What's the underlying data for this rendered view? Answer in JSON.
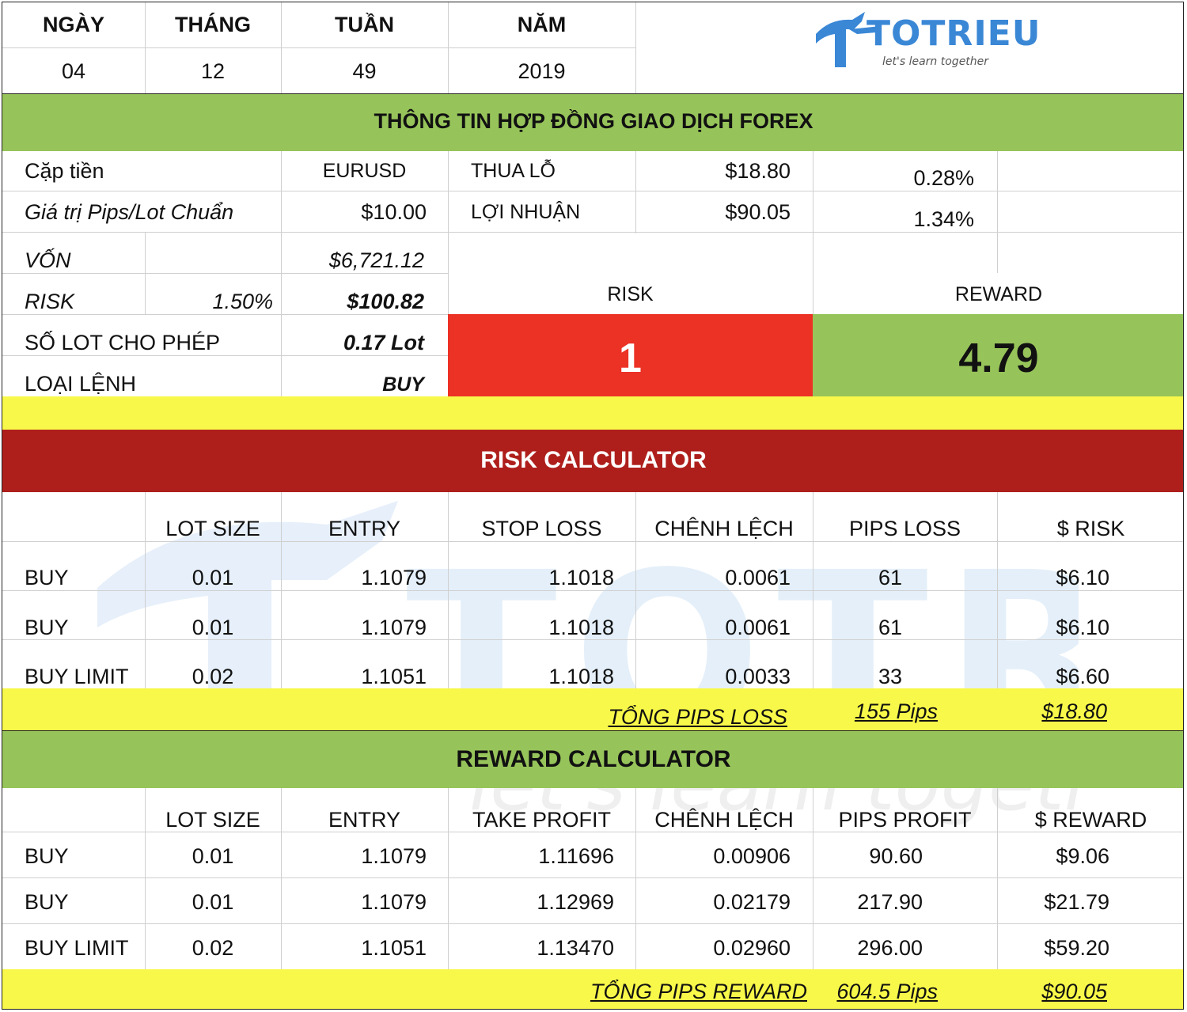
{
  "date_header": {
    "labels": [
      "NGÀY",
      "THÁNG",
      "TUẦN",
      "NĂM"
    ],
    "values": [
      "04",
      "12",
      "49",
      "2019"
    ]
  },
  "logo": {
    "brand": "TOTRIEU",
    "tagline": "let's learn together"
  },
  "contract": {
    "title": "THÔNG TIN HỢP ĐỒNG GIAO DỊCH FOREX",
    "pair_label": "Cặp tiền",
    "pair_value": "EURUSD",
    "pip_value_label": "Giá trị Pips/Lot Chuẩn",
    "pip_value": "$10.00",
    "loss_label": "THUA LỖ",
    "loss_amount": "$18.80",
    "loss_percent": "0.28%",
    "profit_label": "LỢI NHUẬN",
    "profit_amount": "$90.05",
    "profit_percent": "1.34%",
    "capital_label": "VỐN",
    "capital_value": "$6,721.12",
    "risk_label": "RISK",
    "risk_percent": "1.50%",
    "risk_amount": "$100.82",
    "lot_allowed_label": "SỐ LOT CHO PHÉP",
    "lot_allowed_value": "0.17 Lot",
    "order_type_label": "LOẠI LỆNH",
    "order_type_value": "BUY",
    "rr_risk_label": "RISK",
    "rr_reward_label": "REWARD",
    "rr_risk_value": "1",
    "rr_reward_value": "4.79"
  },
  "risk_calc": {
    "title": "RISK CALCULATOR",
    "headers": [
      "",
      "LOT SIZE",
      "ENTRY",
      "STOP LOSS",
      "CHÊNH LỆCH",
      "PIPS LOSS",
      "$ RISK"
    ],
    "rows": [
      [
        "BUY",
        "0.01",
        "1.1079",
        "1.1018",
        "0.0061",
        "61",
        "$6.10"
      ],
      [
        "BUY",
        "0.01",
        "1.1079",
        "1.1018",
        "0.0061",
        "61",
        "$6.10"
      ],
      [
        "BUY LIMIT",
        "0.02",
        "1.1051",
        "1.1018",
        "0.0033",
        "33",
        "$6.60"
      ]
    ],
    "total_label": "TỔNG PIPS LOSS",
    "total_pips": "155 Pips",
    "total_amount": "$18.80"
  },
  "reward_calc": {
    "title": "REWARD CALCULATOR",
    "headers": [
      "",
      "LOT SIZE",
      "ENTRY",
      "TAKE PROFIT",
      "CHÊNH LỆCH",
      "PIPS PROFIT",
      "$ REWARD"
    ],
    "rows": [
      [
        "BUY",
        "0.01",
        "1.1079",
        "1.11696",
        "0.00906",
        "90.60",
        "$9.06"
      ],
      [
        "BUY",
        "0.01",
        "1.1079",
        "1.12969",
        "0.02179",
        "217.90",
        "$21.79"
      ],
      [
        "BUY LIMIT",
        "0.02",
        "1.1051",
        "1.13470",
        "0.02960",
        "296.00",
        "$59.20"
      ]
    ],
    "total_label": "TỔNG PIPS REWARD",
    "total_pips": "604.5 Pips",
    "total_amount": "$90.05"
  },
  "colors": {
    "green": "#97c45a",
    "yellow": "#f8f84a",
    "dark_red": "#ae1f1c",
    "red": "#ec3125",
    "logo_blue": "#3a87d6"
  }
}
